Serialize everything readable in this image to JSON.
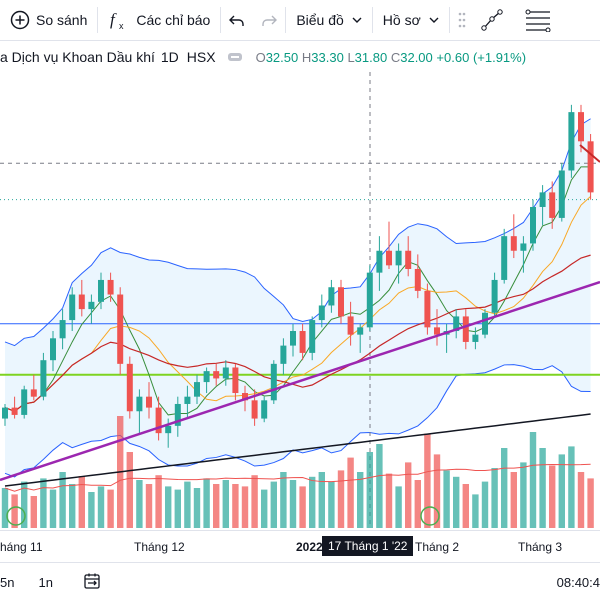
{
  "toolbar": {
    "compare_label": "So sánh",
    "indicators_label": "Các chỉ báo",
    "chart_menu_label": "Biểu đồ",
    "profile_menu_label": "Hồ sơ"
  },
  "legend": {
    "symbol_name": "a Dịch vụ Khoan Dầu khí",
    "interval": "1D",
    "exchange": "HSX",
    "o_label": "O",
    "o_value": "32.50",
    "h_label": "H",
    "h_value": "33.30",
    "l_label": "L",
    "l_value": "31.80",
    "c_label": "C",
    "c_value": "32.00",
    "change": "+0.60",
    "change_pct": "(+1.91%)"
  },
  "time_axis": {
    "ticks": [
      "háng 11",
      "Tháng 12",
      "2022",
      "Tháng 2",
      "Tháng 3"
    ],
    "crosshair_label": "17 Tháng 1 '22"
  },
  "bottom_bar": {
    "range_1": "5n",
    "range_2": "1n",
    "clock": "08:40:4"
  },
  "colors": {
    "up": "#26a69a",
    "down": "#ef5350",
    "trendline": "#9c27b0",
    "support_line": "#7ed321",
    "resistance_line": "#2962ff",
    "bollinger_fill": "#e3f2fd"
  },
  "chart_data": {
    "type": "candlestick",
    "ohlc": [
      [
        27.0,
        27.4,
        26.8,
        27.3
      ],
      [
        27.3,
        27.6,
        27.0,
        27.1
      ],
      [
        27.1,
        27.9,
        27.0,
        27.8
      ],
      [
        27.8,
        28.2,
        27.5,
        27.6
      ],
      [
        27.6,
        28.8,
        27.5,
        28.6
      ],
      [
        28.6,
        29.4,
        28.3,
        29.2
      ],
      [
        29.2,
        30.0,
        28.9,
        29.7
      ],
      [
        29.7,
        30.6,
        29.4,
        30.4
      ],
      [
        30.4,
        30.8,
        29.8,
        30.0
      ],
      [
        30.0,
        30.4,
        29.6,
        30.2
      ],
      [
        30.2,
        31.0,
        30.0,
        30.8
      ],
      [
        30.8,
        31.0,
        30.2,
        30.4
      ],
      [
        30.4,
        30.6,
        28.2,
        28.5
      ],
      [
        28.5,
        28.7,
        27.0,
        27.2
      ],
      [
        27.2,
        27.8,
        26.6,
        27.6
      ],
      [
        27.6,
        28.0,
        27.0,
        27.3
      ],
      [
        27.3,
        27.6,
        26.4,
        26.6
      ],
      [
        26.6,
        27.0,
        26.2,
        26.8
      ],
      [
        26.8,
        27.6,
        26.5,
        27.4
      ],
      [
        27.4,
        27.9,
        27.0,
        27.6
      ],
      [
        27.6,
        28.2,
        27.4,
        28.0
      ],
      [
        28.0,
        28.4,
        27.7,
        28.3
      ],
      [
        28.3,
        28.5,
        27.9,
        28.1
      ],
      [
        28.1,
        28.6,
        27.9,
        28.4
      ],
      [
        28.4,
        28.5,
        27.5,
        27.7
      ],
      [
        27.7,
        27.9,
        27.2,
        27.5
      ],
      [
        27.5,
        27.8,
        26.8,
        27.0
      ],
      [
        27.0,
        27.6,
        26.9,
        27.5
      ],
      [
        27.5,
        28.6,
        27.4,
        28.5
      ],
      [
        28.5,
        29.2,
        28.2,
        29.0
      ],
      [
        29.0,
        29.6,
        28.7,
        29.4
      ],
      [
        29.4,
        29.6,
        28.6,
        28.8
      ],
      [
        28.8,
        29.8,
        28.6,
        29.7
      ],
      [
        29.7,
        30.4,
        29.5,
        30.1
      ],
      [
        30.1,
        30.8,
        29.9,
        30.6
      ],
      [
        30.6,
        30.8,
        29.6,
        29.8
      ],
      [
        29.8,
        30.2,
        29.0,
        29.3
      ],
      [
        29.3,
        29.6,
        28.8,
        29.5
      ],
      [
        29.5,
        31.2,
        29.4,
        31.0
      ],
      [
        31.0,
        32.0,
        30.5,
        31.6
      ],
      [
        31.6,
        32.4,
        31.1,
        31.2
      ],
      [
        31.2,
        31.8,
        30.7,
        31.6
      ],
      [
        31.6,
        32.0,
        30.9,
        31.1
      ],
      [
        31.1,
        31.5,
        30.3,
        30.5
      ],
      [
        30.5,
        30.7,
        29.3,
        29.5
      ],
      [
        29.5,
        30.0,
        29.0,
        29.3
      ],
      [
        29.3,
        29.6,
        28.8,
        29.4
      ],
      [
        29.4,
        30.0,
        29.2,
        29.8
      ],
      [
        29.8,
        30.0,
        28.9,
        29.1
      ],
      [
        29.1,
        29.5,
        28.9,
        29.3
      ],
      [
        29.3,
        30.0,
        29.2,
        29.9
      ],
      [
        29.9,
        31.0,
        29.8,
        30.8
      ],
      [
        30.8,
        32.2,
        30.7,
        32.0
      ],
      [
        32.0,
        32.6,
        31.4,
        31.6
      ],
      [
        31.6,
        32.0,
        31.0,
        31.8
      ],
      [
        31.8,
        33.0,
        31.6,
        32.8
      ],
      [
        32.8,
        33.4,
        32.3,
        33.2
      ],
      [
        33.2,
        33.5,
        32.2,
        32.5
      ],
      [
        32.5,
        34.0,
        32.4,
        33.8
      ],
      [
        33.8,
        35.6,
        33.6,
        35.4
      ],
      [
        35.4,
        35.6,
        34.3,
        34.6
      ],
      [
        34.6,
        34.8,
        33.0,
        33.2
      ]
    ],
    "volume": [
      50,
      42,
      58,
      40,
      62,
      48,
      70,
      55,
      65,
      45,
      52,
      48,
      140,
      95,
      60,
      55,
      66,
      52,
      48,
      58,
      50,
      62,
      55,
      60,
      55,
      52,
      66,
      48,
      58,
      70,
      60,
      52,
      64,
      70,
      58,
      72,
      88,
      70,
      95,
      105,
      68,
      52,
      82,
      60,
      118,
      92,
      72,
      64,
      55,
      42,
      58,
      75,
      100,
      70,
      82,
      120,
      100,
      78,
      92,
      102,
      70,
      62
    ],
    "volume_up": [
      true,
      false,
      true,
      false,
      true,
      true,
      true,
      true,
      false,
      true,
      true,
      false,
      false,
      false,
      true,
      false,
      false,
      true,
      true,
      true,
      true,
      true,
      false,
      true,
      false,
      false,
      false,
      true,
      true,
      true,
      true,
      false,
      true,
      true,
      true,
      false,
      false,
      true,
      true,
      true,
      false,
      true,
      false,
      false,
      false,
      false,
      true,
      true,
      false,
      true,
      true,
      true,
      true,
      false,
      true,
      true,
      true,
      false,
      true,
      true,
      false,
      false
    ],
    "support_level": 28.2,
    "resistance_level": 29.6,
    "dotted_level": 33.0,
    "dashed_level": 34.0,
    "ylim": [
      24.0,
      36.5
    ]
  }
}
